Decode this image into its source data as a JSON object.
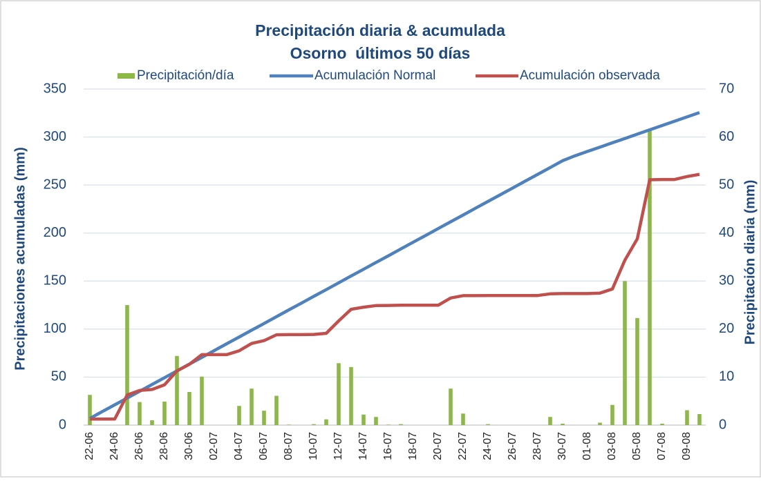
{
  "chart_data": {
    "type": "combo",
    "title": "Precipitación diaria & acumulada",
    "subtitle": "Osorno  últimos 50 días",
    "y_label": "Precipitaciones acumuladas (mm)",
    "y2_label": "Precipitación diaria (mm)",
    "categories": [
      "22-06",
      null,
      "24-06",
      null,
      "26-06",
      null,
      "28-06",
      null,
      "30-06",
      null,
      "02-07",
      null,
      "04-07",
      null,
      "06-07",
      null,
      "08-07",
      null,
      "10-07",
      null,
      "12-07",
      null,
      "14-07",
      null,
      "16-07",
      null,
      "18-07",
      null,
      "20-07",
      null,
      "22-07",
      null,
      "24-07",
      null,
      "26-07",
      null,
      "28-07",
      null,
      "30-07",
      null,
      "01-08",
      null,
      "03-08",
      null,
      "05-08",
      null,
      "07-08",
      null,
      "09-08",
      null
    ],
    "series": [
      {
        "name": "Precipitación/día",
        "type": "bar",
        "axis": "y2",
        "color": "#8db848",
        "values": [
          6.3,
          0,
          0,
          25,
          4.8,
          1,
          4.9,
          14.4,
          6.9,
          10.1,
          0,
          0,
          4,
          7.6,
          3,
          6.1,
          0.1,
          0,
          0.2,
          1.2,
          12.9,
          12.1,
          2.2,
          1.7,
          0.1,
          0.2,
          0,
          0,
          0,
          7.6,
          2.4,
          0,
          0.2,
          0,
          0,
          0,
          0,
          1.7,
          0.3,
          0,
          0,
          0.5,
          4.2,
          30,
          22.3,
          61.5,
          0.3,
          0,
          3.1,
          2.3
        ]
      },
      {
        "name": "Acumulación Normal",
        "type": "line",
        "color": "#4f81bd",
        "values": [
          7,
          14.1,
          21.1,
          28.2,
          35.2,
          42.3,
          49.4,
          56.4,
          63.5,
          70.5,
          77.6,
          84.7,
          91.7,
          98.8,
          105.8,
          112.9,
          120,
          127,
          134.1,
          141.1,
          148.2,
          155.3,
          162.3,
          169.4,
          176.4,
          183.5,
          190.6,
          197.6,
          204.7,
          211.7,
          218.8,
          225.9,
          232.9,
          240,
          247,
          254.1,
          261.2,
          268.2,
          275.3,
          280.5,
          285,
          289.5,
          294,
          298.5,
          303,
          307.5,
          312,
          316.5,
          321,
          325.5
        ]
      },
      {
        "name": "Acumulación observada",
        "type": "line",
        "color": "#c0504d",
        "values": [
          6.3,
          6.3,
          6.3,
          31.3,
          36.1,
          37.1,
          42,
          56.4,
          63.3,
          73.4,
          73.4,
          73.4,
          77.4,
          85,
          88,
          94.1,
          94.2,
          94.2,
          94.4,
          95.6,
          108.5,
          120.6,
          122.8,
          124.5,
          124.6,
          124.8,
          124.8,
          124.8,
          124.8,
          132.4,
          134.8,
          134.8,
          135,
          135,
          135,
          135,
          135,
          136.7,
          137,
          137,
          137,
          137.5,
          141.7,
          171.7,
          194,
          255.5,
          255.8,
          255.8,
          258.9,
          261.2
        ]
      }
    ],
    "ylim": [
      0,
      350
    ],
    "yticks": [
      0,
      50,
      100,
      150,
      200,
      250,
      300,
      350
    ],
    "y2lim": [
      0,
      70
    ],
    "y2ticks": [
      0,
      10,
      20,
      30,
      40,
      50,
      60,
      70
    ],
    "grid": true,
    "legend": "top"
  }
}
